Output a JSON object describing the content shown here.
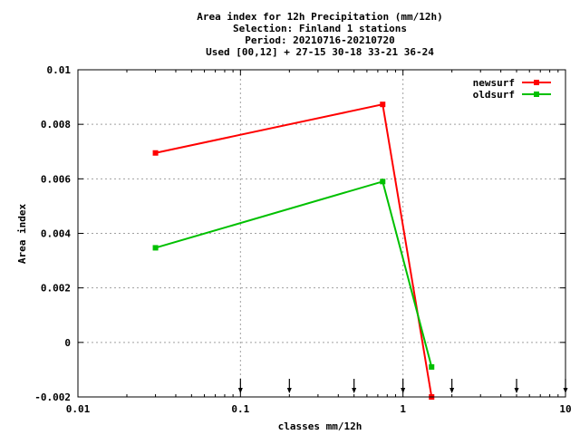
{
  "chart_data": {
    "type": "line",
    "title_lines": [
      "Area index  for 12h Precipitation (mm/12h)",
      "Selection: Finland      1 stations",
      "Period: 20210716-20210720",
      "Used [00,12] + 27-15 30-18 33-21 36-24"
    ],
    "xlabel": "classes mm/12h",
    "ylabel": "Area index",
    "x_scale": "log",
    "xlim": [
      0.01,
      10
    ],
    "ylim": [
      -0.002,
      0.01
    ],
    "x_ticks": [
      0.01,
      0.1,
      1,
      10
    ],
    "x_tick_labels": [
      "0.01",
      "0.1",
      "1",
      "10"
    ],
    "y_ticks": [
      -0.002,
      0,
      0.002,
      0.004,
      0.006,
      0.008,
      0.01
    ],
    "y_tick_labels": [
      "-0.002",
      "0",
      "0.002",
      "0.004",
      "0.006",
      "0.008",
      "0.01"
    ],
    "grid": true,
    "legend_position": "top-right",
    "class_markers": [
      0.1,
      0.2,
      0.5,
      1,
      2,
      5,
      10
    ],
    "series": [
      {
        "name": "newsurf",
        "color": "#ff0000",
        "x": [
          0.03,
          0.75,
          1.5
        ],
        "y": [
          0.00695,
          0.00873,
          -0.002
        ]
      },
      {
        "name": "oldsurf",
        "color": "#00c000",
        "x": [
          0.03,
          0.75,
          1.5
        ],
        "y": [
          0.00347,
          0.0059,
          -0.0009
        ]
      }
    ]
  }
}
